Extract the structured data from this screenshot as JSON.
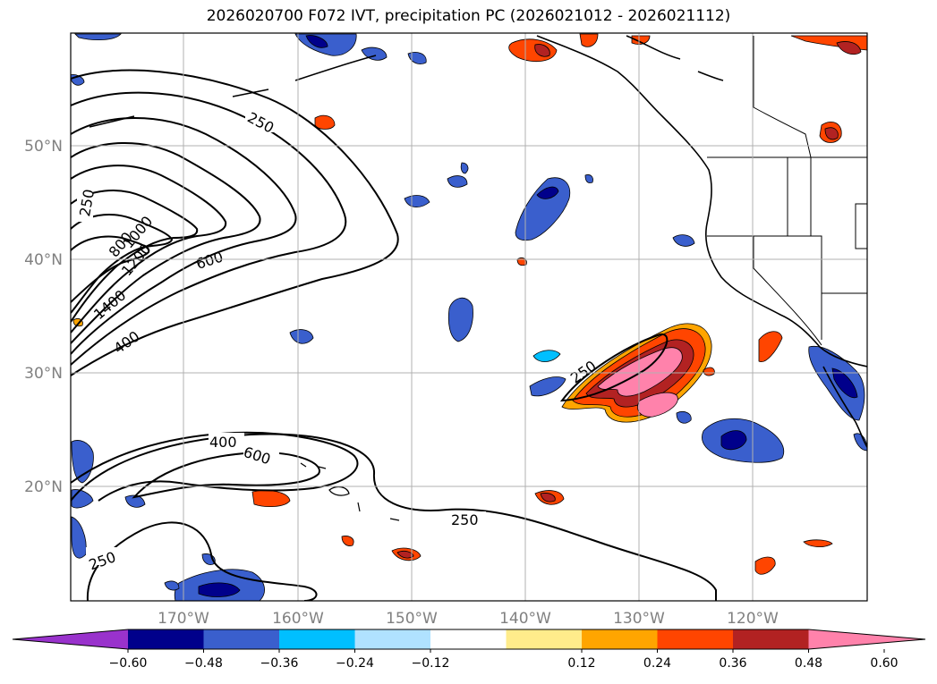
{
  "title": "2026020700 F072 IVT, precipitation PC (2026021012 - 2026021112)",
  "lon_ticks": [
    "170°W",
    "160°W",
    "150°W",
    "140°W",
    "130°W",
    "120°W"
  ],
  "lat_ticks": [
    "50°N",
    "40°N",
    "30°N",
    "20°N"
  ],
  "contour_labels": {
    "c250_a": "250",
    "c250_b": "250",
    "c250_c": "250",
    "c250_d": "250",
    "c250_e": "250",
    "c400_a": "400",
    "c400_b": "400",
    "c600_a": "600",
    "c600_b": "600",
    "c800": "800",
    "c1000": "1000",
    "c1200": "1200",
    "c1400": "1400"
  },
  "colorbar": {
    "colors": [
      "#9932cc",
      "#00008b",
      "#3a5fcd",
      "#00bfff",
      "#b0e2ff",
      "#ffffff",
      "#ffec8b",
      "#ffa500",
      "#ff4500",
      "#b22222",
      "#ff82ab"
    ],
    "ticks": [
      "−0.60",
      "−0.48",
      "−0.36",
      "−0.24",
      "−0.12",
      "0.12",
      "0.24",
      "0.36",
      "0.48",
      "0.60"
    ]
  },
  "colors": {
    "frame": "#000000",
    "grid": "#b0b0b0",
    "coast": "#000000"
  }
}
